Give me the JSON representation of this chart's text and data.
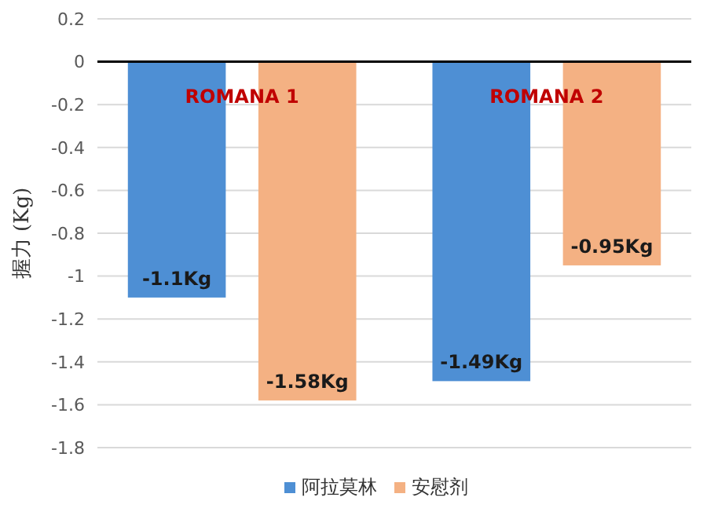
{
  "chart_data": {
    "type": "bar",
    "ylabel": "握力 (Kg)",
    "categories": [
      "ROMANA 1",
      "ROMANA 2"
    ],
    "series": [
      {
        "name": "阿拉莫林",
        "color": "#4e8fd4",
        "values": [
          -1.1,
          -1.49
        ],
        "value_labels": [
          "-1.1Kg",
          "-1.49Kg"
        ]
      },
      {
        "name": "安慰剂",
        "color": "#f4b183",
        "values": [
          -1.58,
          -0.95
        ],
        "value_labels": [
          "-1.58Kg",
          "-0.95Kg"
        ]
      }
    ],
    "ylim": [
      -1.8,
      0.2
    ],
    "yticks": [
      0.2,
      0,
      -0.2,
      -0.4,
      -0.6,
      -0.8,
      -1,
      -1.2,
      -1.4,
      -1.6,
      -1.8
    ],
    "grid": "y",
    "legend": "bottom"
  }
}
